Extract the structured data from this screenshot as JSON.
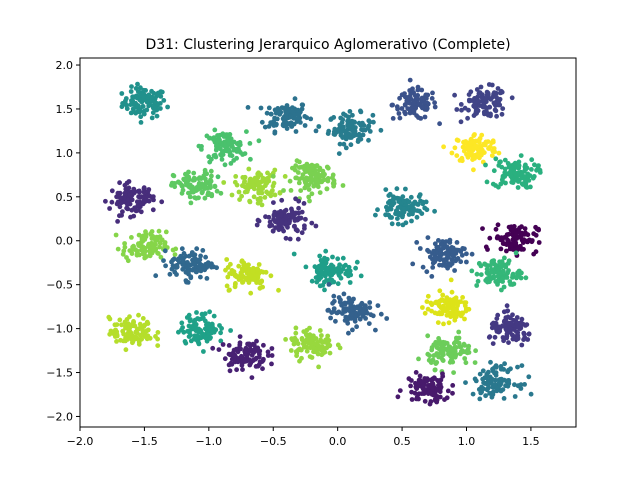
{
  "chart_data": {
    "type": "scatter",
    "title": "D31: Clustering Jerarquico Aglomerativo (Complete)",
    "xlabel": "",
    "ylabel": "",
    "xlim": [
      -2.0,
      1.85
    ],
    "ylim": [
      -2.12,
      2.08
    ],
    "xticks": [
      -2.0,
      -1.5,
      -1.0,
      -0.5,
      0.0,
      0.5,
      1.0,
      1.5
    ],
    "xtick_labels": [
      "−2.0",
      "−1.5",
      "−1.0",
      "−0.5",
      "0.0",
      "0.5",
      "1.0",
      "1.5"
    ],
    "yticks": [
      2.0,
      1.5,
      1.0,
      0.5,
      0.0,
      -0.5,
      -1.0,
      -1.5,
      -2.0
    ],
    "ytick_labels": [
      "2.0",
      "1.5",
      "1.0",
      "0.5",
      "0.0",
      "−0.5",
      "−1.0",
      "−1.5",
      "−2.0"
    ],
    "grid": false,
    "legend": false,
    "colormap": "viridis",
    "clusters": [
      {
        "center": [
          -1.5,
          1.57
        ],
        "color": "#21918c"
      },
      {
        "center": [
          -0.4,
          1.42
        ],
        "color": "#2c728e"
      },
      {
        "center": [
          0.1,
          1.28
        ],
        "color": "#287c8e"
      },
      {
        "center": [
          0.6,
          1.55
        ],
        "color": "#3b528b"
      },
      {
        "center": [
          1.15,
          1.57
        ],
        "color": "#414487"
      },
      {
        "center": [
          -0.88,
          1.07
        ],
        "color": "#4ac16d"
      },
      {
        "center": [
          1.07,
          1.05
        ],
        "color": "#fde725"
      },
      {
        "center": [
          1.37,
          0.77
        ],
        "color": "#2ab07f"
      },
      {
        "center": [
          -1.1,
          0.62
        ],
        "color": "#5ec962"
      },
      {
        "center": [
          -0.63,
          0.63
        ],
        "color": "#a0da39"
      },
      {
        "center": [
          -0.18,
          0.72
        ],
        "color": "#7ad151"
      },
      {
        "center": [
          -1.6,
          0.47
        ],
        "color": "#472d7b"
      },
      {
        "center": [
          -0.4,
          0.23
        ],
        "color": "#46327e"
      },
      {
        "center": [
          0.5,
          0.37
        ],
        "color": "#25858e"
      },
      {
        "center": [
          1.38,
          0.03
        ],
        "color": "#440154"
      },
      {
        "center": [
          -1.5,
          -0.07
        ],
        "color": "#86d549"
      },
      {
        "center": [
          -1.13,
          -0.27
        ],
        "color": "#31688e"
      },
      {
        "center": [
          -0.7,
          -0.38
        ],
        "color": "#c2df23"
      },
      {
        "center": [
          -0.05,
          -0.33
        ],
        "color": "#1f9e89"
      },
      {
        "center": [
          0.82,
          -0.15
        ],
        "color": "#365c8d"
      },
      {
        "center": [
          1.25,
          -0.37
        ],
        "color": "#35b779"
      },
      {
        "center": [
          0.1,
          -0.8
        ],
        "color": "#34618d"
      },
      {
        "center": [
          0.85,
          -0.75
        ],
        "color": "#dde318"
      },
      {
        "center": [
          -1.6,
          -1.05
        ],
        "color": "#b5de2b"
      },
      {
        "center": [
          -1.05,
          -1.0
        ],
        "color": "#1fa188"
      },
      {
        "center": [
          -0.72,
          -1.3
        ],
        "color": "#482173"
      },
      {
        "center": [
          -0.2,
          -1.17
        ],
        "color": "#98d83e"
      },
      {
        "center": [
          0.87,
          -1.27
        ],
        "color": "#6ccd5a"
      },
      {
        "center": [
          1.35,
          -1.02
        ],
        "color": "#443983"
      },
      {
        "center": [
          0.7,
          -1.68
        ],
        "color": "#481a6c"
      },
      {
        "center": [
          1.23,
          -1.6
        ],
        "color": "#2a788e"
      }
    ]
  }
}
